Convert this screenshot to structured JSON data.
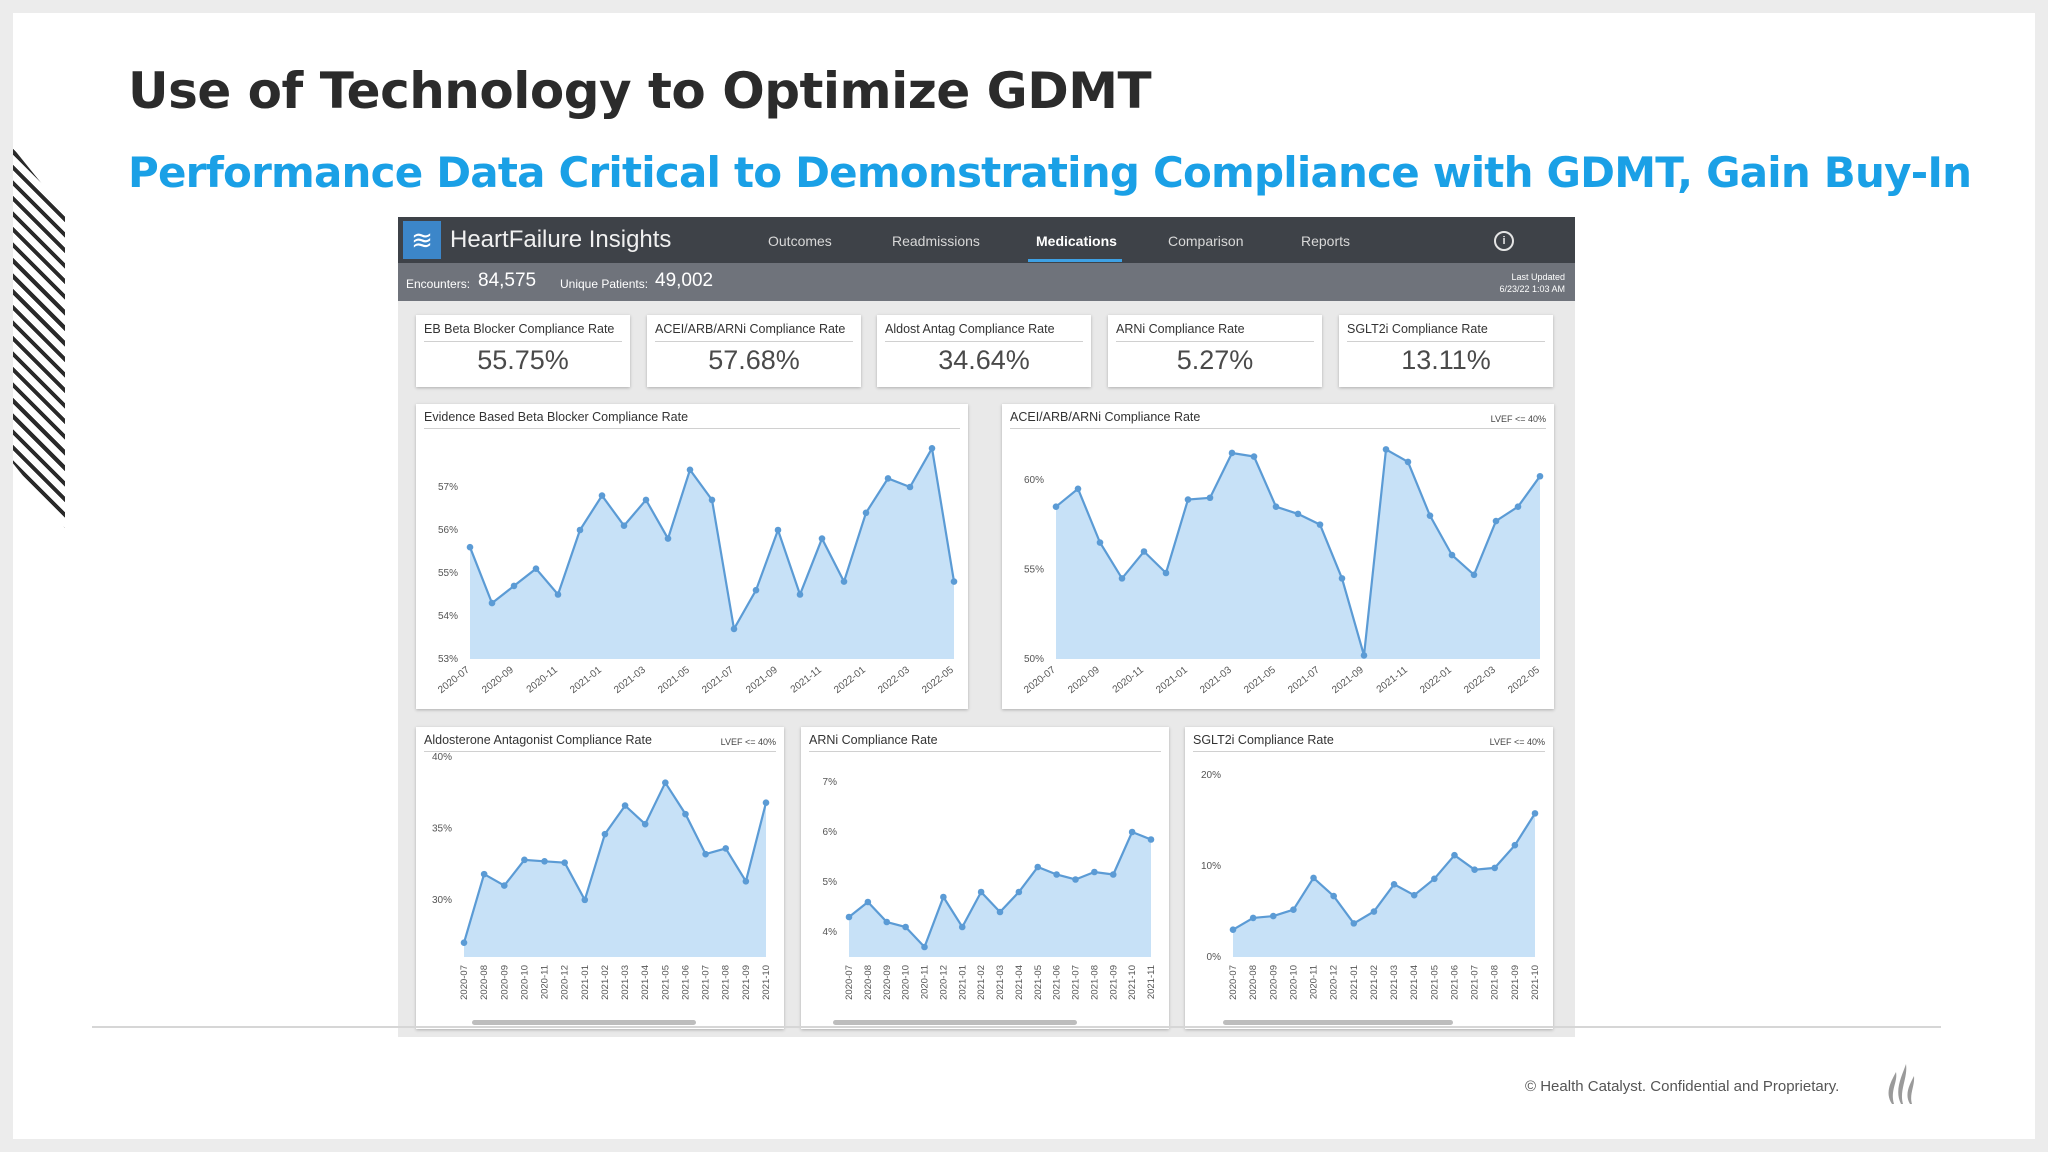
{
  "slide": {
    "title": "Use of Technology to Optimize GDMT",
    "subtitle": "Performance Data Critical to Demonstrating Compliance with GDMT, Gain Buy-In",
    "footer": "© Health Catalyst. Confidential and Proprietary."
  },
  "app": {
    "title": "HeartFailure Insights",
    "nav": [
      "Outcomes",
      "Readmissions",
      "Medications",
      "Comparison",
      "Reports"
    ],
    "active_nav": "Medications",
    "accent": "#3ea1e4"
  },
  "stats": {
    "encounters_label": "Encounters:",
    "encounters_value": "84,575",
    "patients_label": "Unique Patients:",
    "patients_value": "49,002",
    "updated_label": "Last Updated",
    "updated_value": "6/23/22 1:03 AM"
  },
  "kpis": [
    {
      "label": "EB Beta Blocker Compliance Rate",
      "value": "55.75%"
    },
    {
      "label": "ACEI/ARB/ARNi Compliance Rate",
      "value": "57.68%"
    },
    {
      "label": "Aldost Antag Compliance Rate",
      "value": "34.64%"
    },
    {
      "label": "ARNi Compliance Rate",
      "value": "5.27%"
    },
    {
      "label": "SGLT2i Compliance Rate",
      "value": "13.11%"
    }
  ],
  "chart_data": [
    {
      "type": "area",
      "title": "Evidence Based Beta Blocker Compliance Rate",
      "tag": "",
      "categories": [
        "2020-07",
        "2020-08",
        "2020-09",
        "2020-10",
        "2020-11",
        "2020-12",
        "2021-01",
        "2021-02",
        "2021-03",
        "2021-04",
        "2021-05",
        "2021-06",
        "2021-07",
        "2021-08",
        "2021-09",
        "2021-10",
        "2021-11",
        "2021-12",
        "2022-01",
        "2022-02",
        "2022-03",
        "2022-04",
        "2022-05"
      ],
      "show_every": 2,
      "values": [
        55.6,
        54.3,
        54.7,
        55.1,
        54.5,
        56.0,
        56.8,
        56.1,
        56.7,
        55.8,
        57.4,
        56.7,
        53.7,
        54.6,
        56.0,
        54.5,
        55.8,
        54.8,
        56.4,
        57.2,
        57.0,
        57.9,
        54.8
      ],
      "ylim": [
        53,
        58
      ],
      "yticks": [
        53,
        54,
        55,
        56,
        57
      ],
      "ytick_labels": [
        "53%",
        "54%",
        "55%",
        "56%",
        "57%"
      ],
      "color": "#5b9bd5",
      "fill": "#c7e1f7"
    },
    {
      "type": "area",
      "title": "ACEI/ARB/ARNi Compliance Rate",
      "tag": "LVEF <= 40%",
      "categories": [
        "2020-07",
        "2020-08",
        "2020-09",
        "2020-10",
        "2020-11",
        "2020-12",
        "2021-01",
        "2021-02",
        "2021-03",
        "2021-04",
        "2021-05",
        "2021-06",
        "2021-07",
        "2021-08",
        "2021-09",
        "2021-10",
        "2021-11",
        "2021-12",
        "2022-01",
        "2022-02",
        "2022-03",
        "2022-04",
        "2022-05"
      ],
      "show_every": 2,
      "values": [
        58.5,
        59.5,
        56.5,
        54.5,
        56.0,
        54.8,
        58.9,
        59.0,
        61.5,
        61.3,
        58.5,
        58.1,
        57.5,
        54.5,
        50.2,
        61.7,
        61.0,
        58.0,
        55.8,
        54.7,
        57.7,
        58.5,
        60.2
      ],
      "ylim": [
        50,
        62
      ],
      "yticks": [
        50,
        55,
        60
      ],
      "ytick_labels": [
        "50%",
        "55%",
        "60%"
      ],
      "color": "#5b9bd5",
      "fill": "#c7e1f7"
    },
    {
      "type": "area",
      "title": "Aldosterone Antagonist Compliance Rate",
      "tag": "LVEF <= 40%",
      "categories": [
        "2020-07",
        "2020-08",
        "2020-09",
        "2020-10",
        "2020-11",
        "2020-12",
        "2021-01",
        "2021-02",
        "2021-03",
        "2021-04",
        "2021-05",
        "2021-06",
        "2021-07",
        "2021-08",
        "2021-09",
        "2021-10"
      ],
      "show_every": 1,
      "values": [
        27.0,
        31.8,
        31.0,
        32.8,
        32.7,
        32.6,
        30.0,
        34.6,
        36.6,
        35.3,
        38.2,
        36.0,
        33.2,
        33.6,
        31.3,
        36.8
      ],
      "ylim": [
        26,
        40
      ],
      "yticks": [
        30,
        35,
        40
      ],
      "ytick_labels": [
        "30%",
        "35%",
        "40%"
      ],
      "color": "#5b9bd5",
      "fill": "#c7e1f7"
    },
    {
      "type": "area",
      "title": "ARNi Compliance Rate",
      "tag": "",
      "categories": [
        "2020-07",
        "2020-08",
        "2020-09",
        "2020-10",
        "2020-11",
        "2020-12",
        "2021-01",
        "2021-02",
        "2021-03",
        "2021-04",
        "2021-05",
        "2021-06",
        "2021-07",
        "2021-08",
        "2021-09",
        "2021-10",
        "2021-11"
      ],
      "show_every": 1,
      "values": [
        4.3,
        4.6,
        4.2,
        4.1,
        3.7,
        4.7,
        4.1,
        4.8,
        4.4,
        4.8,
        5.3,
        5.15,
        5.05,
        5.2,
        5.15,
        6.0,
        5.85
      ],
      "ylim": [
        3.5,
        7.5
      ],
      "yticks": [
        4,
        5,
        6,
        7
      ],
      "ytick_labels": [
        "4%",
        "5%",
        "6%",
        "7%"
      ],
      "color": "#5b9bd5",
      "fill": "#c7e1f7"
    },
    {
      "type": "area",
      "title": "SGLT2i Compliance Rate",
      "tag": "LVEF <= 40%",
      "categories": [
        "2020-07",
        "2020-08",
        "2020-09",
        "2020-10",
        "2020-11",
        "2020-12",
        "2021-01",
        "2021-02",
        "2021-03",
        "2021-04",
        "2021-05",
        "2021-06",
        "2021-07",
        "2021-08",
        "2021-09",
        "2021-10"
      ],
      "show_every": 1,
      "values": [
        3.0,
        4.3,
        4.5,
        5.2,
        8.7,
        6.7,
        3.7,
        5.0,
        8.0,
        6.8,
        8.6,
        11.2,
        9.6,
        9.8,
        12.3,
        15.8
      ],
      "ylim": [
        0,
        22
      ],
      "yticks": [
        0,
        10,
        20
      ],
      "ytick_labels": [
        "0%",
        "10%",
        "20%"
      ],
      "color": "#5b9bd5",
      "fill": "#c7e1f7"
    }
  ]
}
